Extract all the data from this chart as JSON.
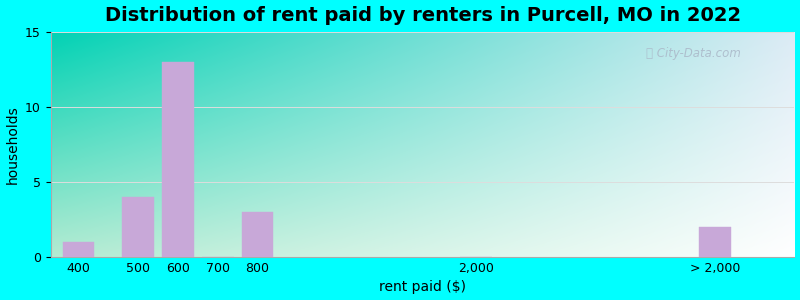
{
  "title": "Distribution of rent paid by renters in Purcell, MO in 2022",
  "xlabel": "rent paid ($)",
  "ylabel": "households",
  "bar_color": "#c8a8d8",
  "background_outer": "#00ffff",
  "background_inner_topleft": "#c8eedd",
  "background_inner_right": "#e8f0f8",
  "background_inner_bottom": "#ffffff",
  "ylim": [
    0,
    15
  ],
  "yticks": [
    0,
    5,
    10,
    15
  ],
  "categories": [
    "400",
    "500",
    "600",
    "700",
    "800",
    "2,000",
    "> 2,000"
  ],
  "values": [
    1,
    4,
    13,
    0,
    3,
    0,
    2
  ],
  "x_positions": [
    0,
    1.5,
    2.5,
    3.5,
    4.5,
    10,
    16
  ],
  "bar_width": 0.8,
  "xlim": [
    -0.7,
    18
  ],
  "title_fontsize": 14,
  "axis_label_fontsize": 10,
  "tick_fontsize": 9,
  "watermark": "City-Data.com"
}
